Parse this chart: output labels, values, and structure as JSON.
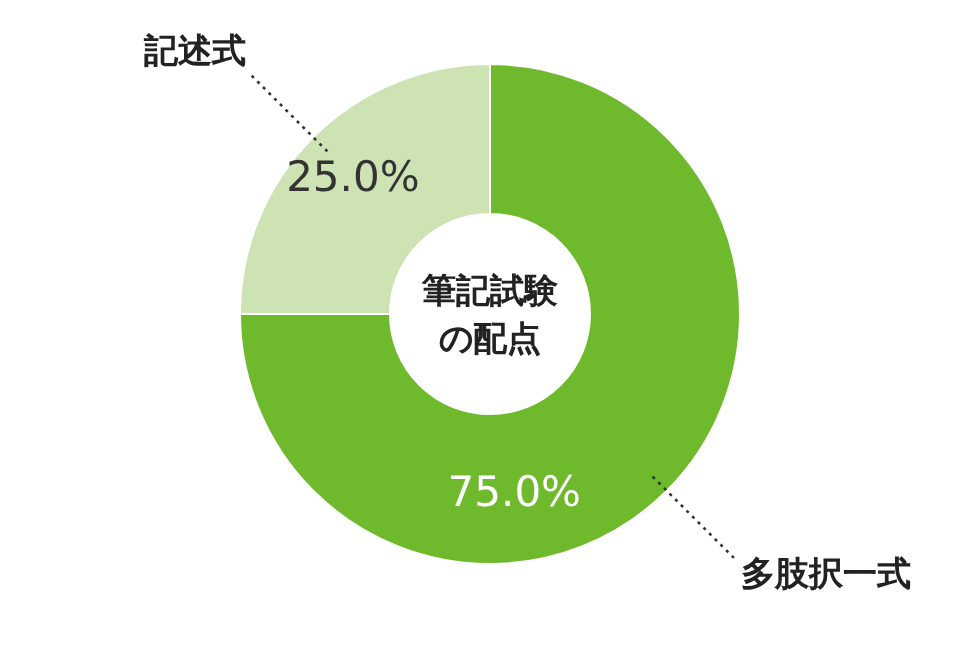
{
  "chart_data": {
    "type": "donut",
    "title": "筆記試験",
    "subtitle": "の配点",
    "categories": [
      "多肢択一式",
      "記述式"
    ],
    "values": [
      75,
      25
    ],
    "colors": [
      "#6fb92c",
      "#cde3b3"
    ],
    "value_labels": [
      "75.0%",
      "25.0%"
    ]
  }
}
